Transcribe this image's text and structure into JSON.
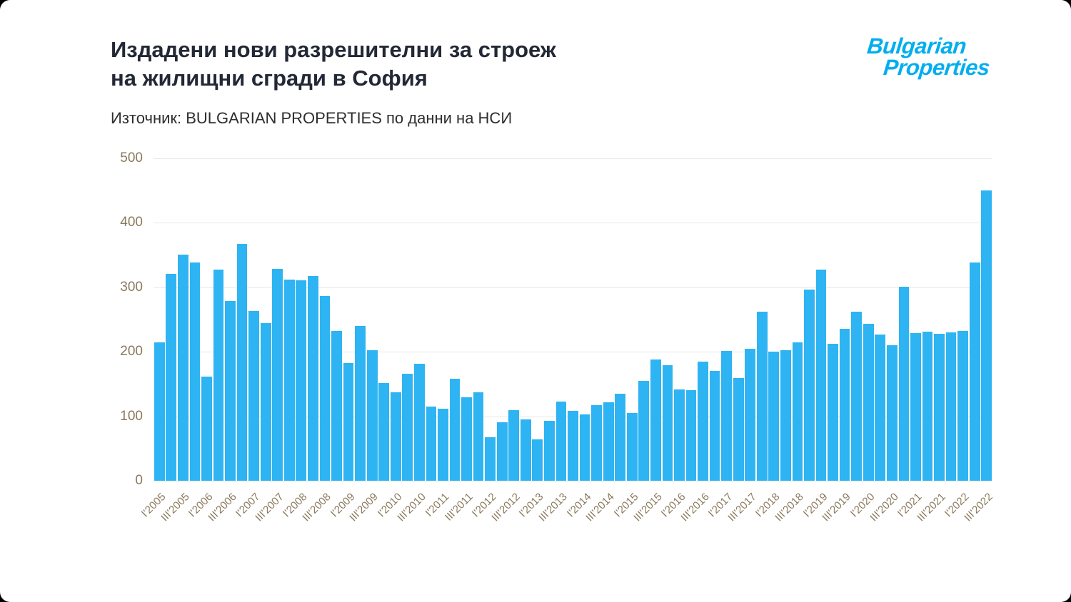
{
  "header": {
    "title_line1": "Издадени нови разрешителни за строеж",
    "title_line2": "на жилищни сгради в София",
    "source": "Източник: BULGARIAN PROPERTIES по данни на НСИ"
  },
  "logo": {
    "line1": "Bulgarian",
    "line2": "Properties",
    "color": "#00aeef"
  },
  "chart_data": {
    "type": "bar",
    "title": "Издадени нови разрешителни за строеж на жилищни сгради в София",
    "subtitle": "Източник: BULGARIAN PROPERTIES по данни на НСИ",
    "xlabel": "",
    "ylabel": "",
    "categories": [
      "I'2005",
      "II'2005",
      "III'2005",
      "IV'2005",
      "I'2006",
      "II'2006",
      "III'2006",
      "IV'2006",
      "I'2007",
      "II'2007",
      "III'2007",
      "IV'2007",
      "I'2008",
      "II'2008",
      "III'2008",
      "IV'2008",
      "I'2009",
      "II'2009",
      "III'2009",
      "IV'2009",
      "I'2010",
      "II'2010",
      "III'2010",
      "IV'2010",
      "I'2011",
      "II'2011",
      "III'2011",
      "IV'2011",
      "I'2012",
      "II'2012",
      "III'2012",
      "IV'2012",
      "I'2013",
      "II'2013",
      "III'2013",
      "IV'2013",
      "I'2014",
      "II'2014",
      "III'2014",
      "IV'2014",
      "I'2015",
      "II'2015",
      "III'2015",
      "IV'2015",
      "I'2016",
      "II'2016",
      "III'2016",
      "IV'2016",
      "I'2017",
      "II'2017",
      "III'2017",
      "IV'2017",
      "I'2018",
      "II'2018",
      "III'2018",
      "IV'2018",
      "I'2019",
      "II'2019",
      "III'2019",
      "IV'2019",
      "I'2020",
      "II'2020",
      "III'2020",
      "IV'2020",
      "I'2021",
      "II'2021",
      "III'2021",
      "IV'2021",
      "I'2022",
      "II'2022",
      "III'2022"
    ],
    "values": [
      215,
      321,
      351,
      339,
      161,
      327,
      279,
      367,
      263,
      244,
      329,
      312,
      311,
      318,
      287,
      232,
      183,
      240,
      202,
      152,
      137,
      166,
      181,
      115,
      112,
      158,
      129,
      137,
      68,
      91,
      110,
      95,
      64,
      93,
      123,
      108,
      103,
      117,
      122,
      135,
      105,
      155,
      188,
      179,
      142,
      140,
      185,
      170,
      201,
      159,
      205,
      262,
      200,
      202,
      215,
      296,
      328,
      212,
      236,
      262,
      243,
      227,
      210,
      301,
      229,
      231,
      228,
      230,
      232,
      338,
      450
    ],
    "ylim": [
      0,
      500
    ],
    "yticks": [
      0,
      100,
      200,
      300,
      400,
      500
    ],
    "x_tick_step": 2,
    "grid": true,
    "legend": "none",
    "bar_color": "#2eb4f2",
    "grid_color": "#e8e8e8",
    "axis_label_color": "#8a795c"
  }
}
